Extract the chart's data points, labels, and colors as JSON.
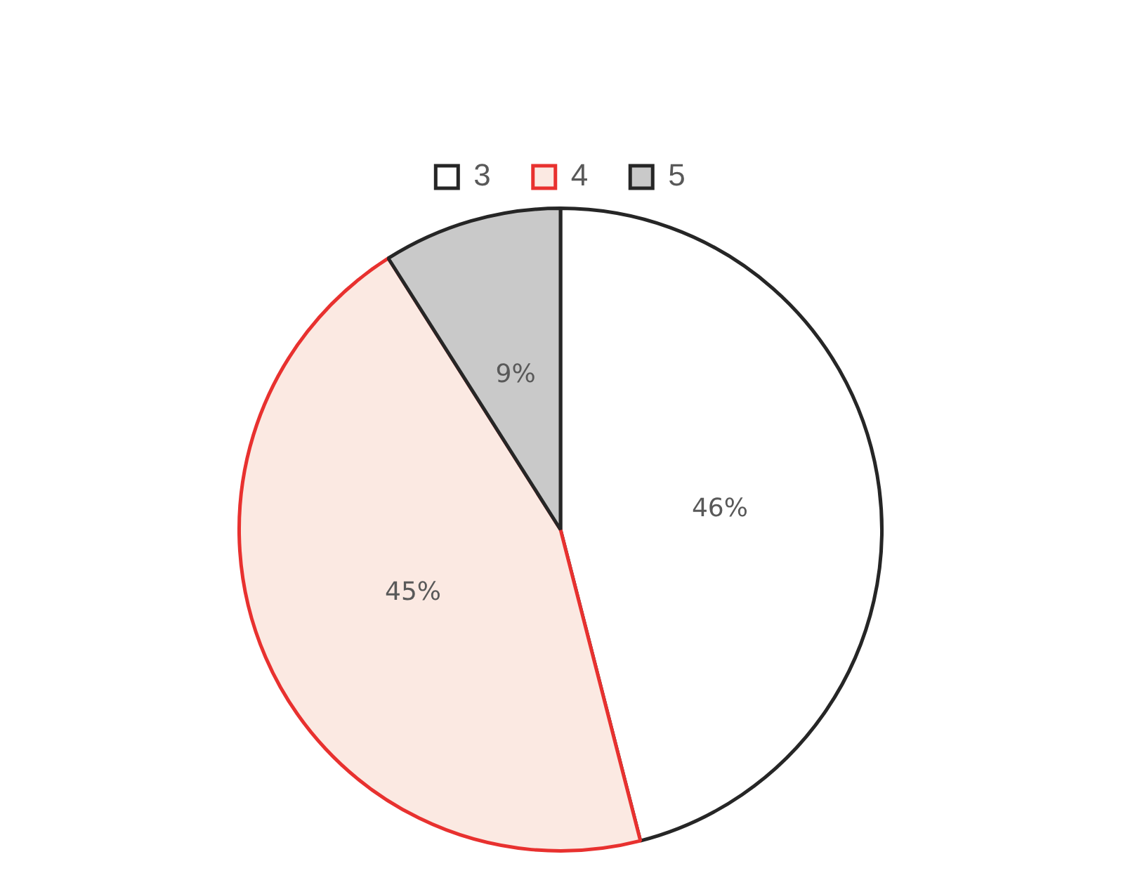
{
  "chart_data": {
    "type": "pie",
    "categories": [
      "3",
      "4",
      "5"
    ],
    "values": [
      46,
      45,
      9
    ],
    "colors": [
      "#ffffff",
      "#fbe9e2",
      "#c9c9c9"
    ],
    "value_labels": [
      "46%",
      "45%",
      "9%"
    ],
    "legend": "top"
  }
}
